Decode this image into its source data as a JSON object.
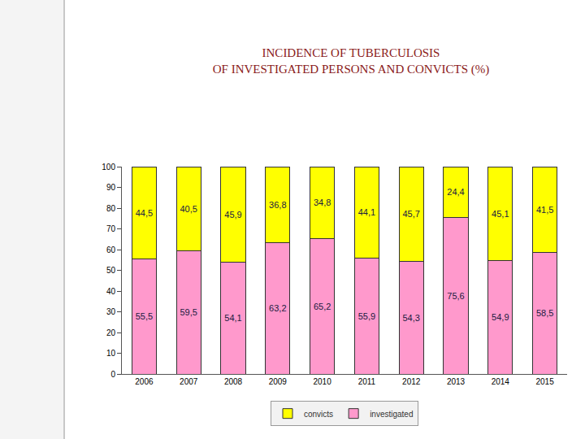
{
  "chart_data": {
    "type": "bar",
    "title": "INCIDENCE OF TUBERCULOSIS\nOF INVESTIGATED PERSONS AND CONVICTS (%)",
    "categories": [
      "2006",
      "2007",
      "2008",
      "2009",
      "2010",
      "2011",
      "2012",
      "2013",
      "2014",
      "2015"
    ],
    "series": [
      {
        "name": "investigated",
        "color": "#ff99cc",
        "values": [
          55.5,
          59.5,
          54.1,
          63.2,
          65.2,
          55.9,
          54.3,
          75.6,
          54.9,
          58.5
        ],
        "value_labels": [
          "55,5",
          "59,5",
          "54,1",
          "63,2",
          "65,2",
          "55,9",
          "54,3",
          "75,6",
          "54,9",
          "58,5"
        ]
      },
      {
        "name": "convicts",
        "color": "#ffff00",
        "values": [
          44.5,
          40.5,
          45.9,
          36.8,
          34.8,
          44.1,
          45.7,
          24.4,
          45.1,
          41.5
        ],
        "value_labels": [
          "44,5",
          "40,5",
          "45,9",
          "36,8",
          "34,8",
          "44,1",
          "45,7",
          "24,4",
          "45,1",
          "41,5"
        ]
      }
    ],
    "ylim": [
      0,
      100
    ],
    "yticks": [
      0,
      10,
      20,
      30,
      40,
      50,
      60,
      70,
      80,
      90,
      100
    ],
    "stacked": true,
    "data_labels": true,
    "grid": false,
    "legend": "bottom"
  }
}
